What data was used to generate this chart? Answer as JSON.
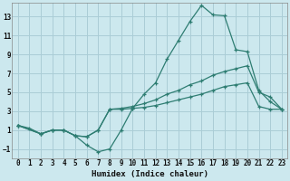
{
  "xlabel": "Humidex (Indice chaleur)",
  "bg_color": "#cce8ee",
  "grid_color": "#aacdd6",
  "line_color": "#2e7d72",
  "xlim": [
    -0.5,
    23.5
  ],
  "ylim": [
    -2.0,
    14.5
  ],
  "xticks": [
    0,
    1,
    2,
    3,
    4,
    5,
    6,
    7,
    8,
    9,
    10,
    11,
    12,
    13,
    14,
    15,
    16,
    17,
    18,
    19,
    20,
    21,
    22,
    23
  ],
  "yticks": [
    -1,
    1,
    3,
    5,
    7,
    9,
    11,
    13
  ],
  "line1_x": [
    0,
    1,
    2,
    3,
    4,
    5,
    6,
    7,
    8,
    9,
    10,
    11,
    12,
    13,
    14,
    15,
    16,
    17,
    18,
    19,
    20,
    21,
    22,
    23
  ],
  "line1_y": [
    1.5,
    1.2,
    0.6,
    1.0,
    1.0,
    0.4,
    -0.6,
    -1.3,
    -1.0,
    1.0,
    3.3,
    4.8,
    6.0,
    8.5,
    10.5,
    12.5,
    14.2,
    13.2,
    13.1,
    9.5,
    9.3,
    5.2,
    4.0,
    3.2
  ],
  "line2_x": [
    0,
    2,
    3,
    4,
    5,
    6,
    7,
    8,
    9,
    10,
    11,
    12,
    13,
    14,
    15,
    16,
    17,
    18,
    19,
    20,
    21,
    22,
    23
  ],
  "line2_y": [
    1.5,
    0.6,
    1.0,
    1.0,
    0.4,
    0.3,
    1.0,
    3.2,
    3.3,
    3.5,
    3.8,
    4.2,
    4.8,
    5.2,
    5.8,
    6.2,
    6.8,
    7.2,
    7.5,
    7.8,
    5.0,
    4.5,
    3.2
  ],
  "line3_x": [
    0,
    2,
    3,
    4,
    5,
    6,
    7,
    8,
    9,
    10,
    11,
    12,
    13,
    14,
    15,
    16,
    17,
    18,
    19,
    20,
    21,
    22,
    23
  ],
  "line3_y": [
    1.5,
    0.6,
    1.0,
    1.0,
    0.4,
    0.3,
    1.0,
    3.2,
    3.2,
    3.3,
    3.4,
    3.6,
    3.9,
    4.2,
    4.5,
    4.8,
    5.2,
    5.6,
    5.8,
    6.0,
    3.5,
    3.2,
    3.2
  ]
}
